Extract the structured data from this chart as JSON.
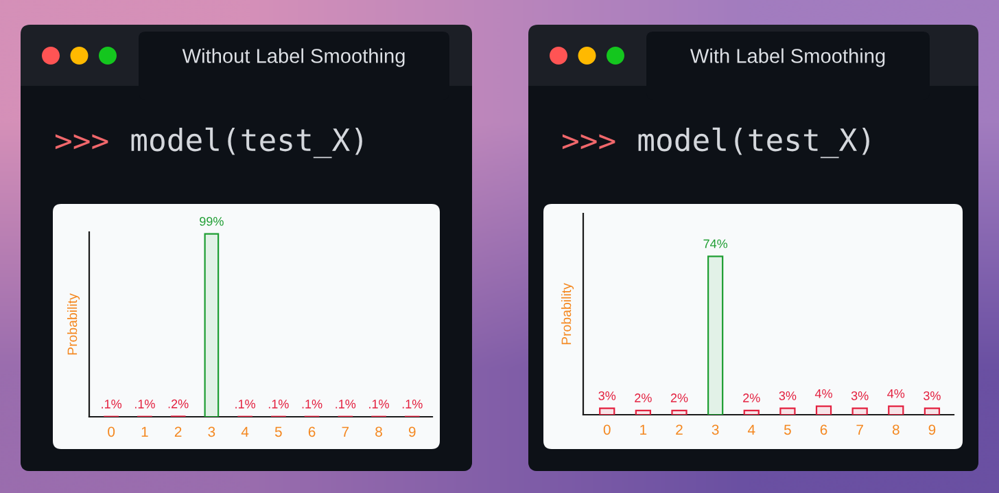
{
  "chart_data": [
    {
      "type": "bar",
      "title": "Without Label Smoothing",
      "annotations": [
        ">>>",
        "model(test_X)"
      ],
      "ylabel": "Probability",
      "categories": [
        "0",
        "1",
        "2",
        "3",
        "4",
        "5",
        "6",
        "7",
        "8",
        "9"
      ],
      "values": [
        0.1,
        0.1,
        0.2,
        99,
        0.1,
        0.1,
        0.1,
        0.1,
        0.1,
        0.1
      ],
      "colors": [
        "#e3203f",
        "#e3203f",
        "#e3203f",
        "#1f9e33",
        "#e3203f",
        "#e3203f",
        "#e3203f",
        "#e3203f",
        "#e3203f",
        "#e3203f"
      ],
      "value_labels": [
        ".1%",
        ".1%",
        ".2%",
        "99%",
        ".1%",
        ".1%",
        ".1%",
        ".1%",
        ".1%",
        ".1%"
      ],
      "ylim": [
        0,
        100
      ],
      "tick_labels": "x"
    },
    {
      "type": "bar",
      "title": "With Label Smoothing",
      "annotations": [
        ">>>",
        "model(test_X)"
      ],
      "ylabel": "Probability",
      "categories": [
        "0",
        "1",
        "2",
        "3",
        "4",
        "5",
        "6",
        "7",
        "8",
        "9"
      ],
      "values": [
        3,
        2,
        2,
        74,
        2,
        3,
        4,
        3,
        4,
        3
      ],
      "colors": [
        "#e3203f",
        "#e3203f",
        "#e3203f",
        "#1f9e33",
        "#e3203f",
        "#e3203f",
        "#e3203f",
        "#e3203f",
        "#e3203f",
        "#e3203f"
      ],
      "value_labels": [
        "3%",
        "2%",
        "2%",
        "74%",
        "2%",
        "3%",
        "4%",
        "3%",
        "4%",
        "3%"
      ],
      "ylim": [
        0,
        94
      ],
      "tick_labels": "x"
    }
  ]
}
